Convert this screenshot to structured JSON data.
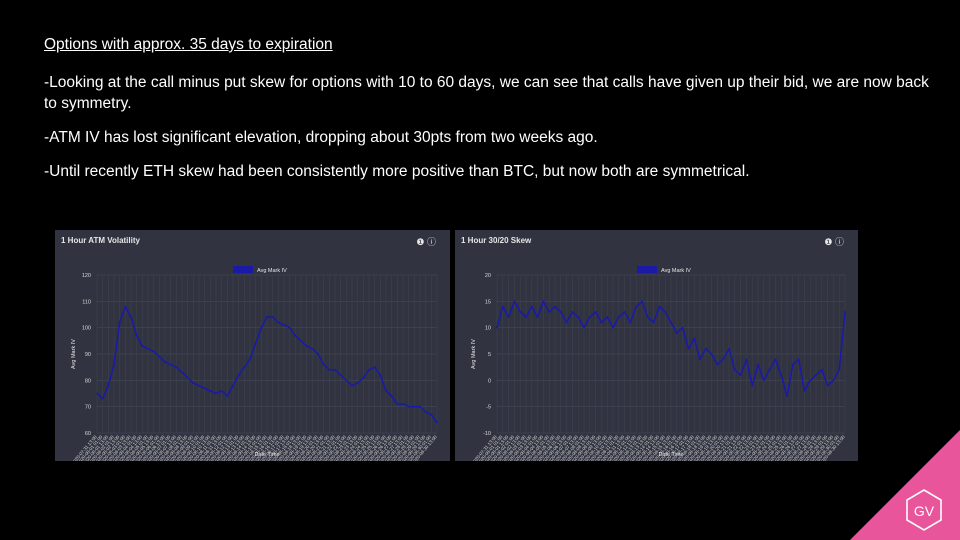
{
  "slide": {
    "heading": "Options with approx. 35 days to expiration",
    "bullets": [
      "-Looking at the call minus put skew for options with 10 to 60 days, we can see that calls have given up their bid, we are now back to symmetry.",
      "-ATM IV has lost significant elevation, dropping about 30pts from two weeks ago.",
      "-Until recently ETH skew had been consistently more positive than BTC, but now both are symmetrical."
    ],
    "logo_text": "GV"
  },
  "panels": [
    {
      "title": "1 Hour ATM Volatility",
      "icons": "❶ ⓘ"
    },
    {
      "title": "1 Hour 30/20 Skew",
      "icons": "❶ ⓘ"
    }
  ],
  "colors": {
    "background": "#000000",
    "panel": "#313440",
    "series": "#1a1aa6",
    "accent": "#e8559a",
    "grid": "#444856"
  },
  "chart_data": [
    {
      "type": "line",
      "title": "1 Hour ATM Volatility",
      "xlabel": "Date Time",
      "ylabel": "Avg Mark IV",
      "ylim": [
        60,
        120
      ],
      "yticks": [
        60,
        70,
        80,
        90,
        100,
        110,
        120
      ],
      "grid": true,
      "legend": "top-center",
      "x": [
        "2020-07-31 13:00",
        "2020-08-01 01:00",
        "2020-08-01 13:00",
        "2020-08-02 01:00",
        "2020-08-02 13:00",
        "2020-08-03 01:00",
        "2020-08-03 13:00",
        "2020-08-04 01:00",
        "2020-08-04 13:00",
        "2020-08-05 01:00",
        "2020-08-05 13:00",
        "2020-08-06 01:00",
        "2020-08-06 13:00",
        "2020-08-07 01:00",
        "2020-08-07 13:00",
        "2020-08-08 01:00",
        "2020-08-08 13:00",
        "2020-08-09 01:00",
        "2020-08-09 13:00",
        "2020-08-10 01:00",
        "2020-08-10 13:00",
        "2020-08-11 01:00",
        "2020-08-11 13:00",
        "2020-08-12 01:00",
        "2020-08-12 13:00",
        "2020-08-13 01:00",
        "2020-08-13 13:00",
        "2020-08-14 01:00",
        "2020-08-14 13:00",
        "2020-08-15 01:00",
        "2020-08-15 13:00",
        "2020-08-16 01:00",
        "2020-08-16 13:00",
        "2020-08-17 01:00",
        "2020-08-17 13:00",
        "2020-08-18 01:00",
        "2020-08-18 13:00",
        "2020-08-19 01:00",
        "2020-08-19 13:00",
        "2020-08-20 01:00",
        "2020-08-20 13:00",
        "2020-08-21 01:00",
        "2020-08-21 13:00",
        "2020-08-22 01:00",
        "2020-08-22 13:00",
        "2020-08-23 01:00",
        "2020-08-23 13:00",
        "2020-08-24 01:00",
        "2020-08-24 13:00",
        "2020-08-25 01:00",
        "2020-08-25 13:00",
        "2020-08-26 01:00",
        "2020-08-26 13:00",
        "2020-08-27 01:00",
        "2020-08-27 13:00",
        "2020-08-28 01:00",
        "2020-08-28 13:00",
        "2020-08-29 01:00",
        "2020-08-29 13:00",
        "2020-08-30 01:00",
        "2020-08-30 13:00"
      ],
      "series": [
        {
          "name": "Avg Mark IV",
          "values": [
            75,
            73,
            78,
            86,
            102,
            108,
            104,
            97,
            93,
            92,
            91,
            89,
            87,
            86,
            85,
            83,
            81,
            79,
            78,
            77,
            76,
            75,
            76,
            74,
            78,
            82,
            85,
            88,
            94,
            100,
            104,
            104,
            102,
            101,
            100,
            97,
            95,
            93,
            92,
            90,
            86,
            84,
            84,
            82,
            80,
            78,
            79,
            81,
            84,
            85,
            82,
            76,
            74,
            71,
            71,
            70,
            70,
            70,
            68,
            67,
            64
          ]
        }
      ]
    },
    {
      "type": "line",
      "title": "1 Hour 30/20 Skew",
      "xlabel": "Date Time",
      "ylabel": "Avg Mark IV",
      "ylim": [
        -10,
        20
      ],
      "yticks": [
        -10,
        -5,
        0,
        5,
        10,
        15,
        20
      ],
      "grid": true,
      "legend": "top-center",
      "x": [
        "2020-07-31 13:00",
        "2020-08-01 01:00",
        "2020-08-01 13:00",
        "2020-08-02 01:00",
        "2020-08-02 13:00",
        "2020-08-03 01:00",
        "2020-08-03 13:00",
        "2020-08-04 01:00",
        "2020-08-04 13:00",
        "2020-08-05 01:00",
        "2020-08-05 13:00",
        "2020-08-06 01:00",
        "2020-08-06 13:00",
        "2020-08-07 01:00",
        "2020-08-07 13:00",
        "2020-08-08 01:00",
        "2020-08-08 13:00",
        "2020-08-09 01:00",
        "2020-08-09 13:00",
        "2020-08-10 01:00",
        "2020-08-10 13:00",
        "2020-08-11 01:00",
        "2020-08-11 13:00",
        "2020-08-12 01:00",
        "2020-08-12 13:00",
        "2020-08-13 01:00",
        "2020-08-13 13:00",
        "2020-08-14 01:00",
        "2020-08-14 13:00",
        "2020-08-15 01:00",
        "2020-08-15 13:00",
        "2020-08-16 01:00",
        "2020-08-16 13:00",
        "2020-08-17 01:00",
        "2020-08-17 13:00",
        "2020-08-18 01:00",
        "2020-08-18 13:00",
        "2020-08-19 01:00",
        "2020-08-19 13:00",
        "2020-08-20 01:00",
        "2020-08-20 13:00",
        "2020-08-21 01:00",
        "2020-08-21 13:00",
        "2020-08-22 01:00",
        "2020-08-22 13:00",
        "2020-08-23 01:00",
        "2020-08-23 13:00",
        "2020-08-24 01:00",
        "2020-08-24 13:00",
        "2020-08-25 01:00",
        "2020-08-25 13:00",
        "2020-08-26 01:00",
        "2020-08-26 13:00",
        "2020-08-27 01:00",
        "2020-08-27 13:00",
        "2020-08-28 01:00",
        "2020-08-28 13:00",
        "2020-08-29 01:00",
        "2020-08-29 13:00",
        "2020-08-30 01:00",
        "2020-08-30 13:00"
      ],
      "series": [
        {
          "name": "Avg Mark IV",
          "values": [
            10,
            14,
            12,
            15,
            13,
            12,
            14,
            12,
            15,
            13,
            14,
            13,
            11,
            13,
            12,
            10,
            12,
            13,
            11,
            12,
            10,
            12,
            13,
            11,
            14,
            15,
            12,
            11,
            14,
            13,
            11,
            9,
            10,
            6,
            8,
            4,
            6,
            5,
            3,
            4,
            6,
            2,
            1,
            4,
            -1,
            3,
            0,
            2,
            4,
            1,
            -3,
            3,
            4,
            -2,
            0,
            1,
            2,
            -1,
            0,
            2,
            13
          ]
        }
      ]
    }
  ]
}
